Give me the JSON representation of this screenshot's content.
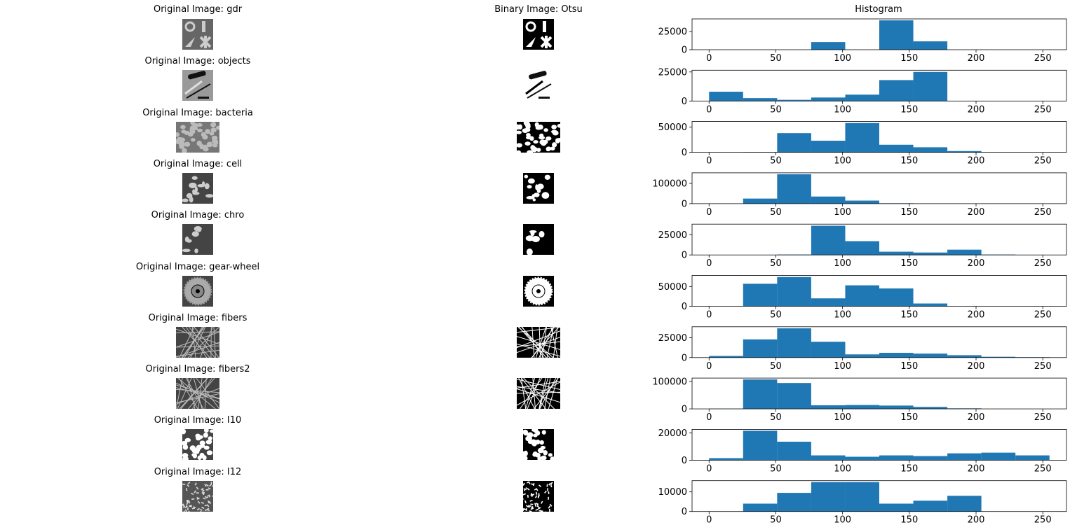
{
  "header": {
    "col1_title": "Original Image: gdr",
    "col2_title": "Binary Image: Otsu",
    "col3_title": "Histogram"
  },
  "rows": [
    {
      "title": "Original Image: gdr",
      "shape": "square",
      "style": "gdr"
    },
    {
      "title": "Original Image: objects",
      "shape": "square",
      "style": "objects"
    },
    {
      "title": "Original Image: bacteria",
      "shape": "wide",
      "style": "bacteria"
    },
    {
      "title": "Original Image: cell",
      "shape": "square",
      "style": "cell"
    },
    {
      "title": "Original Image: chro",
      "shape": "square",
      "style": "chro"
    },
    {
      "title": "Original Image: gear-wheel",
      "shape": "square",
      "style": "gear"
    },
    {
      "title": "Original Image: fibers",
      "shape": "wide",
      "style": "fibers"
    },
    {
      "title": "Original Image: fibers2",
      "shape": "wide",
      "style": "fibers"
    },
    {
      "title": "Original Image: I10",
      "shape": "square",
      "style": "dots"
    },
    {
      "title": "Original Image: I12",
      "shape": "square",
      "style": "grains"
    }
  ],
  "chart_data": {
    "type": "bar",
    "bin_edges": [
      0,
      25.5,
      51,
      76.5,
      102,
      127.5,
      153,
      178.5,
      204,
      229.5,
      255
    ],
    "xticks": [
      0,
      50,
      100,
      150,
      200,
      250
    ],
    "xlim": [
      -12.75,
      267.75
    ],
    "color": "#1f77b4",
    "histograms": [
      {
        "counts": [
          0,
          0,
          0,
          10500,
          0,
          40500,
          11500,
          0,
          0,
          0
        ],
        "yticks": [
          0,
          25000
        ],
        "ylim": [
          0,
          42500
        ]
      },
      {
        "counts": [
          8000,
          2500,
          1000,
          3000,
          5500,
          18000,
          25000,
          0,
          0,
          0
        ],
        "yticks": [
          0,
          25000
        ],
        "ylim": [
          0,
          26500
        ]
      },
      {
        "counts": [
          0,
          500,
          38000,
          23000,
          58000,
          15000,
          10000,
          2500,
          0,
          0
        ],
        "yticks": [
          0,
          50000
        ],
        "ylim": [
          0,
          61000
        ]
      },
      {
        "counts": [
          0,
          25000,
          145000,
          35000,
          15000,
          2000,
          0,
          0,
          0,
          0
        ],
        "yticks": [
          0,
          100000
        ],
        "ylim": [
          0,
          152000
        ]
      },
      {
        "counts": [
          0,
          0,
          500,
          36000,
          17000,
          4000,
          3000,
          6500,
          500,
          0
        ],
        "yticks": [
          0,
          25000
        ],
        "ylim": [
          0,
          38000
        ]
      },
      {
        "counts": [
          0,
          57000,
          74000,
          20000,
          53000,
          45000,
          7000,
          0,
          0,
          0
        ],
        "yticks": [
          0,
          50000
        ],
        "ylim": [
          0,
          78000
        ]
      },
      {
        "counts": [
          2000,
          23000,
          37000,
          20000,
          4000,
          6000,
          5000,
          3000,
          1000,
          500
        ],
        "yticks": [
          0,
          25000
        ],
        "ylim": [
          0,
          39000
        ]
      },
      {
        "counts": [
          1000,
          107000,
          94000,
          13000,
          14000,
          12000,
          7000,
          2000,
          0,
          0
        ],
        "yticks": [
          0,
          100000
        ],
        "ylim": [
          0,
          112000
        ]
      },
      {
        "counts": [
          1500,
          21500,
          13500,
          3500,
          2500,
          3500,
          3000,
          5000,
          5500,
          3500
        ],
        "yticks": [
          0,
          20000
        ],
        "ylim": [
          0,
          22500
        ]
      },
      {
        "counts": [
          0,
          4000,
          9500,
          15000,
          15000,
          4000,
          5500,
          8000,
          0,
          0
        ],
        "yticks": [
          0,
          10000
        ],
        "ylim": [
          0,
          15700
        ]
      }
    ]
  }
}
